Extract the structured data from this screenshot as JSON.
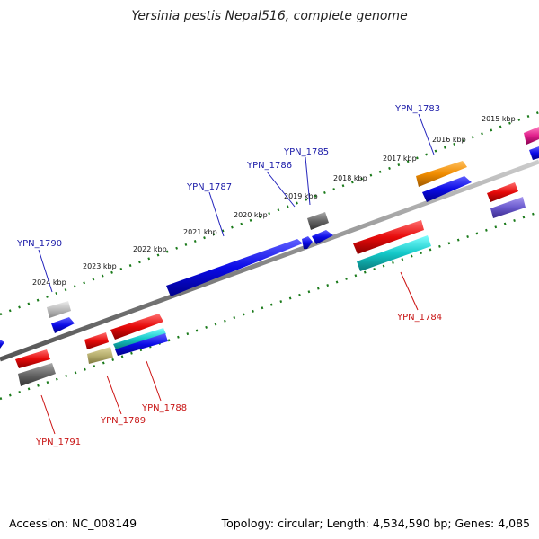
{
  "title": "Yersinia pestis Nepal516, complete genome",
  "footer": {
    "accession": "Accession: NC_008149",
    "summary": "Topology: circular; Length: 4,534,590 bp; Genes: 4,085"
  },
  "kbp_labels": [
    "2015 kbp",
    "2016 kbp",
    "2017 kbp",
    "2018 kbp",
    "2019 kbp",
    "2020 kbp",
    "2021 kbp",
    "2022 kbp",
    "2023 kbp",
    "2024 kbp"
  ],
  "forward_genes": [
    "YPN_1783",
    "YPN_1785",
    "YPN_1786",
    "YPN_1787",
    "YPN_1790"
  ],
  "reverse_genes": [
    "YPN_1784",
    "YPN_1788",
    "YPN_1789",
    "YPN_1791"
  ],
  "colors": {
    "blue": "#0a0ae6",
    "red": "#e60a0a",
    "gray": "#666666",
    "light_gray": "#bbbbbb",
    "orange": "#f08c00",
    "cyan": "#14c8c8",
    "olive": "#b8b070",
    "purple": "#6a5acd",
    "magenta": "#e0208c",
    "tick_green": "#1a7a1a",
    "backbone": "#888888"
  }
}
